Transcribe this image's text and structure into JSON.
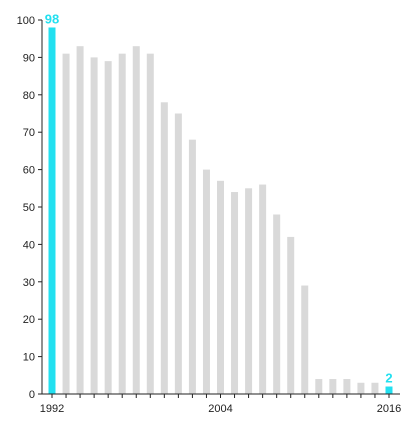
{
  "chart_data": {
    "type": "bar",
    "title": "",
    "xlabel": "",
    "ylabel": "",
    "categories": [
      1992,
      1993,
      1994,
      1995,
      1996,
      1997,
      1998,
      1999,
      2000,
      2001,
      2002,
      2003,
      2004,
      2005,
      2006,
      2007,
      2008,
      2009,
      2010,
      2011,
      2012,
      2013,
      2014,
      2015,
      2016
    ],
    "values": [
      98,
      91,
      93,
      90,
      89,
      91,
      93,
      91,
      78,
      75,
      68,
      60,
      57,
      54,
      55,
      56,
      48,
      42,
      29,
      4,
      4,
      4,
      3,
      3,
      2
    ],
    "ylim": [
      0,
      100
    ],
    "y_ticks": [
      0,
      10,
      20,
      30,
      40,
      50,
      60,
      70,
      80,
      90,
      100
    ],
    "x_tick_labels": [
      "1992",
      "2004",
      "2016"
    ],
    "highlighted": [
      {
        "category": 1992,
        "label": "98"
      },
      {
        "category": 2016,
        "label": "2"
      }
    ],
    "grid": false,
    "colors": {
      "bar": "#d9d9d9",
      "highlight": "#22e0f0",
      "axis": "#222222"
    }
  }
}
